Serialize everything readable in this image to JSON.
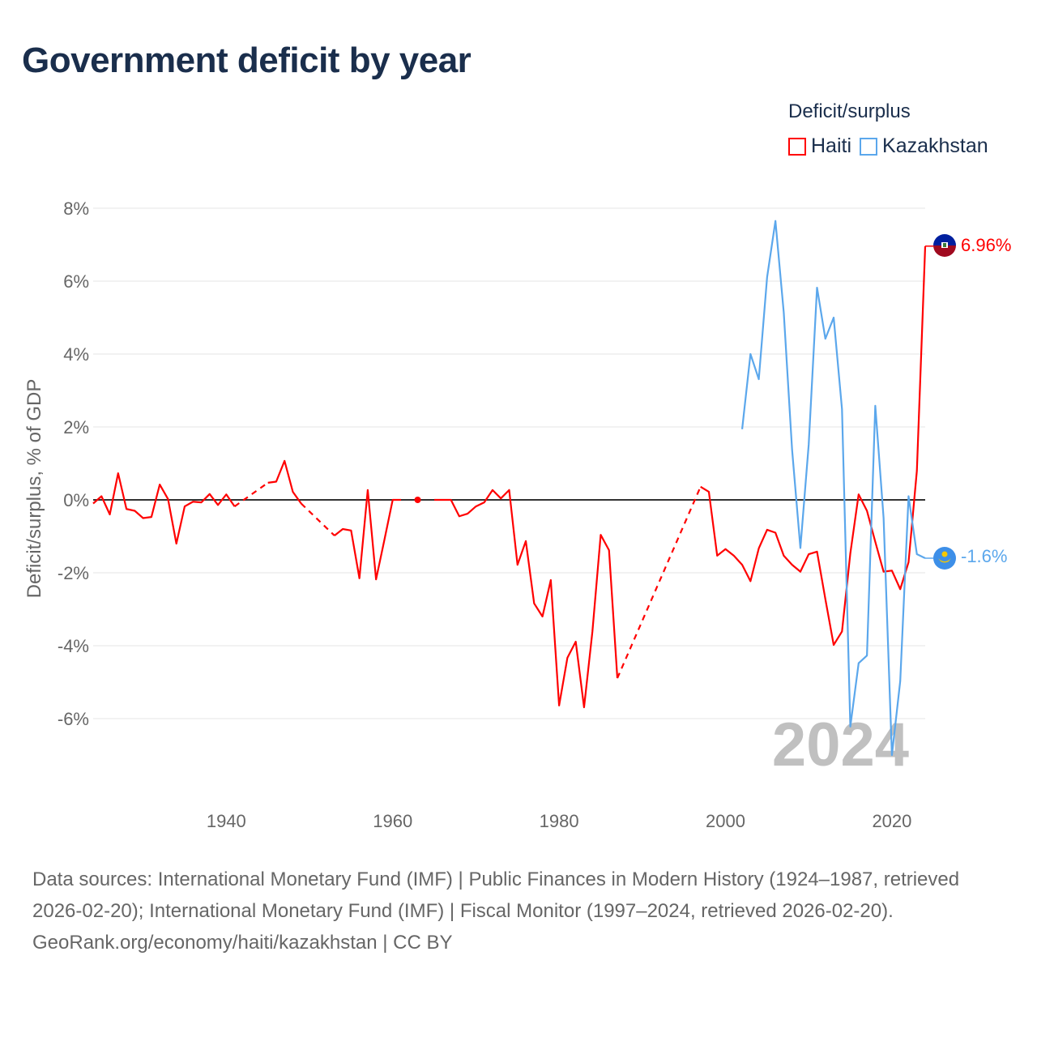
{
  "title": "Government deficit by year",
  "legend": {
    "title": "Deficit/surplus",
    "items": [
      {
        "label": "Haiti",
        "color": "#ff0000"
      },
      {
        "label": "Kazakhstan",
        "color": "#5ba7ec"
      }
    ]
  },
  "year_watermark": "2024",
  "footer": {
    "sources": "Data sources: International Monetary Fund (IMF) | Public Finances in Modern History (1924–1987, retrieved 2026-02-20); International Monetary Fund (IMF) | Fiscal Monitor (1997–2024, retrieved 2026-02-20).",
    "credit": "GeoRank.org/economy/haiti/kazakhstan | CC BY"
  },
  "chart_data": {
    "type": "line",
    "title": "Government deficit by year",
    "xlabel": "",
    "ylabel": "Deficit/surplus, % of GDP",
    "xlim": [
      1924,
      2024
    ],
    "ylim": [
      -8,
      8
    ],
    "x_ticks": [
      1940,
      1960,
      1980,
      2000,
      2020
    ],
    "x_tick_labels": [
      "1940",
      "1960",
      "1980",
      "2000",
      "2020"
    ],
    "y_ticks": [
      8,
      6,
      4,
      2,
      0,
      -2,
      -4,
      -6
    ],
    "y_tick_labels": [
      "8%",
      "6%",
      "4%",
      "2%",
      "0%",
      "-2%",
      "-4%",
      "-6%"
    ],
    "legend_position": "top-right",
    "series": [
      {
        "name": "Haiti",
        "color": "#ff0000",
        "end_label": "6.96%",
        "x": [
          1924,
          1925,
          1926,
          1927,
          1928,
          1929,
          1930,
          1931,
          1932,
          1933,
          1934,
          1935,
          1936,
          1937,
          1938,
          1939,
          1940,
          1941,
          1945,
          1946,
          1947,
          1948,
          1949,
          1953,
          1954,
          1955,
          1956,
          1957,
          1958,
          1959,
          1960,
          1961,
          1963,
          1965,
          1966,
          1967,
          1968,
          1969,
          1970,
          1971,
          1972,
          1973,
          1974,
          1975,
          1976,
          1977,
          1978,
          1979,
          1980,
          1981,
          1982,
          1983,
          1984,
          1985,
          1986,
          1987,
          1997,
          1998,
          1999,
          2000,
          2001,
          2002,
          2003,
          2004,
          2005,
          2006,
          2007,
          2008,
          2009,
          2010,
          2011,
          2012,
          2013,
          2014,
          2015,
          2016,
          2017,
          2018,
          2019,
          2020,
          2021,
          2022,
          2023,
          2024
        ],
        "values": [
          -0.1,
          0.1,
          -0.4,
          0.73,
          -0.25,
          -0.3,
          -0.5,
          -0.47,
          0.42,
          0.02,
          -1.2,
          -0.18,
          -0.05,
          -0.07,
          0.16,
          -0.14,
          0.15,
          -0.18,
          0.47,
          0.5,
          1.07,
          0.22,
          -0.1,
          -0.98,
          -0.8,
          -0.84,
          -2.15,
          0.27,
          -2.18,
          -1.1,
          0,
          0,
          0,
          0,
          0,
          0,
          -0.45,
          -0.38,
          -0.18,
          -0.07,
          0.27,
          0.04,
          0.27,
          -1.78,
          -1.13,
          -2.84,
          -3.2,
          -2.2,
          -5.64,
          -4.33,
          -3.89,
          -5.69,
          -3.62,
          -0.96,
          -1.38,
          -4.89,
          0.36,
          0.22,
          -1.53,
          -1.35,
          -1.53,
          -1.78,
          -2.23,
          -1.33,
          -0.82,
          -0.9,
          -1.53,
          -1.78,
          -1.97,
          -1.49,
          -1.42,
          -2.72,
          -3.98,
          -3.61,
          -1.47,
          0.15,
          -0.3,
          -1.15,
          -1.97,
          -1.94,
          -2.45,
          -1.71,
          0.8,
          6.96
        ]
      },
      {
        "name": "Kazakhstan",
        "color": "#5ba7ec",
        "end_label": "-1.6%",
        "x": [
          2002,
          2003,
          2004,
          2005,
          2006,
          2007,
          2008,
          2009,
          2010,
          2011,
          2012,
          2013,
          2014,
          2015,
          2016,
          2017,
          2018,
          2019,
          2020,
          2021,
          2022,
          2023,
          2024
        ],
        "values": [
          1.94,
          4.0,
          3.31,
          6.11,
          7.65,
          5.14,
          1.38,
          -1.32,
          1.52,
          5.82,
          4.42,
          5.0,
          2.49,
          -6.22,
          -4.48,
          -4.27,
          2.58,
          -0.5,
          -7.0,
          -4.97,
          0.1,
          -1.49,
          -1.6
        ]
      }
    ]
  }
}
